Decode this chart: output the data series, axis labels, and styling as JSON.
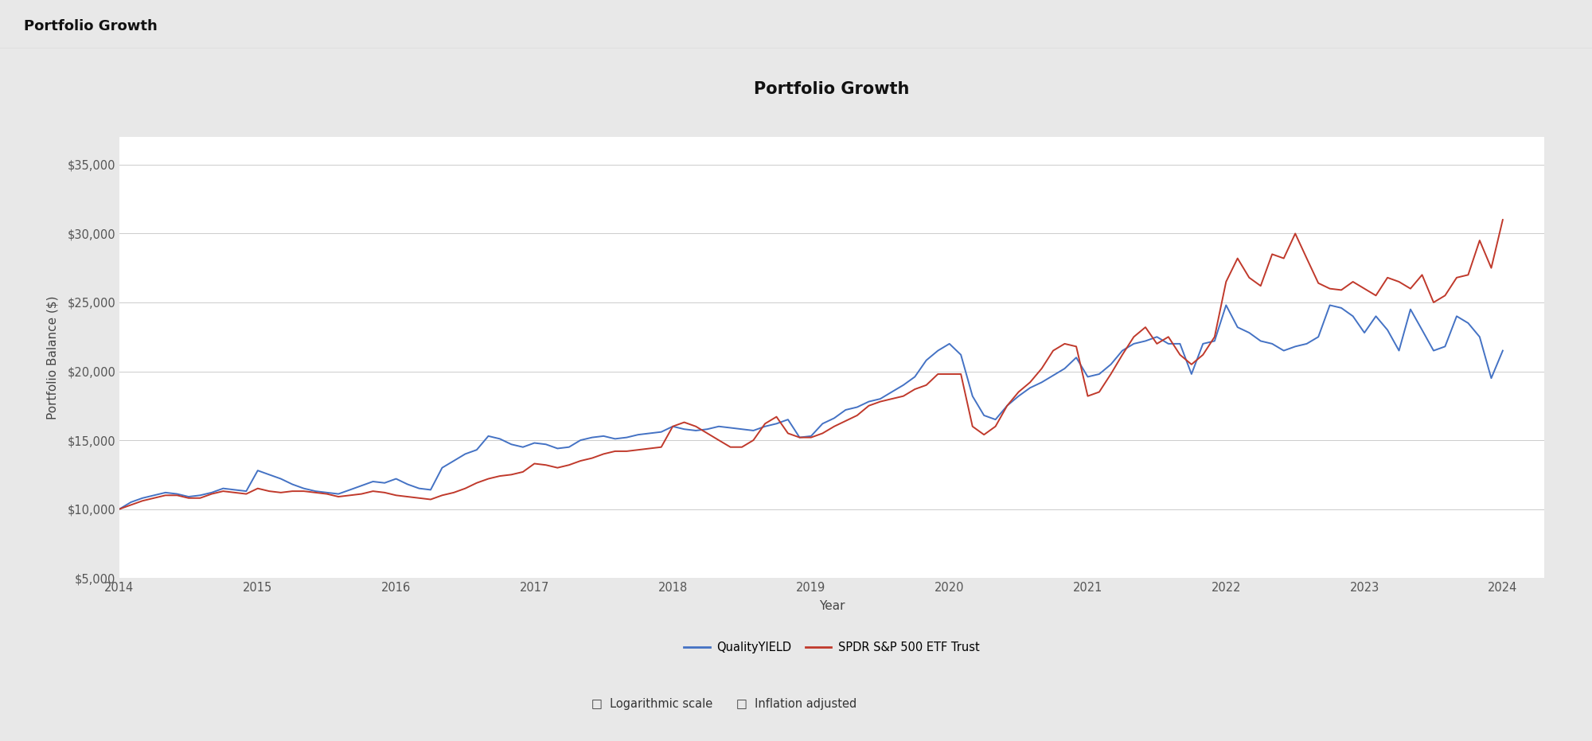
{
  "title": "Portfolio Growth",
  "header": "Portfolio Growth",
  "xlabel": "Year",
  "ylabel": "Portfolio Balance ($)",
  "background_color": "#e8e8e8",
  "chart_bg": "#ffffff",
  "blue_color": "#4472c4",
  "red_color": "#c0392b",
  "legend_blue": "QualityYIELD",
  "legend_red": "SPDR S&P 500 ETF Trust",
  "ylim": [
    5000,
    37000
  ],
  "yticks": [
    5000,
    10000,
    15000,
    20000,
    25000,
    30000,
    35000
  ],
  "blue_x": [
    2014.0,
    2014.083,
    2014.167,
    2014.25,
    2014.333,
    2014.417,
    2014.5,
    2014.583,
    2014.667,
    2014.75,
    2014.833,
    2014.917,
    2015.0,
    2015.083,
    2015.167,
    2015.25,
    2015.333,
    2015.417,
    2015.5,
    2015.583,
    2015.667,
    2015.75,
    2015.833,
    2015.917,
    2016.0,
    2016.083,
    2016.167,
    2016.25,
    2016.333,
    2016.417,
    2016.5,
    2016.583,
    2016.667,
    2016.75,
    2016.833,
    2016.917,
    2017.0,
    2017.083,
    2017.167,
    2017.25,
    2017.333,
    2017.417,
    2017.5,
    2017.583,
    2017.667,
    2017.75,
    2017.833,
    2017.917,
    2018.0,
    2018.083,
    2018.167,
    2018.25,
    2018.333,
    2018.417,
    2018.5,
    2018.583,
    2018.667,
    2018.75,
    2018.833,
    2018.917,
    2019.0,
    2019.083,
    2019.167,
    2019.25,
    2019.333,
    2019.417,
    2019.5,
    2019.583,
    2019.667,
    2019.75,
    2019.833,
    2019.917,
    2020.0,
    2020.083,
    2020.167,
    2020.25,
    2020.333,
    2020.417,
    2020.5,
    2020.583,
    2020.667,
    2020.75,
    2020.833,
    2020.917,
    2021.0,
    2021.083,
    2021.167,
    2021.25,
    2021.333,
    2021.417,
    2021.5,
    2021.583,
    2021.667,
    2021.75,
    2021.833,
    2021.917,
    2022.0,
    2022.083,
    2022.167,
    2022.25,
    2022.333,
    2022.417,
    2022.5,
    2022.583,
    2022.667,
    2022.75,
    2022.833,
    2022.917,
    2023.0,
    2023.083,
    2023.167,
    2023.25,
    2023.333,
    2023.417,
    2023.5,
    2023.583,
    2023.667,
    2023.75,
    2023.833,
    2023.917,
    2024.0
  ],
  "blue_y": [
    10000,
    10500,
    10800,
    11000,
    11200,
    11100,
    10900,
    11000,
    11200,
    11500,
    11400,
    11300,
    12800,
    12500,
    12200,
    11800,
    11500,
    11300,
    11200,
    11100,
    11400,
    11700,
    12000,
    11900,
    12200,
    11800,
    11500,
    11400,
    13000,
    13500,
    14000,
    14300,
    15300,
    15100,
    14700,
    14500,
    14800,
    14700,
    14400,
    14500,
    15000,
    15200,
    15300,
    15100,
    15200,
    15400,
    15500,
    15600,
    16000,
    15800,
    15700,
    15800,
    16000,
    15900,
    15800,
    15700,
    16000,
    16200,
    16500,
    15200,
    15300,
    16200,
    16600,
    17200,
    17400,
    17800,
    18000,
    18500,
    19000,
    19600,
    20800,
    21500,
    22000,
    21200,
    18200,
    16800,
    16500,
    17500,
    18200,
    18800,
    19200,
    19700,
    20200,
    21000,
    19600,
    19800,
    20500,
    21500,
    22000,
    22200,
    22500,
    22000,
    22000,
    19800,
    22000,
    22200,
    24800,
    23200,
    22800,
    22200,
    22000,
    21500,
    21800,
    22000,
    22500,
    24800,
    24600,
    24000,
    22800,
    24000,
    23000,
    21500,
    24500,
    23000,
    21500,
    21800,
    24000,
    23500,
    22500,
    19500,
    21500
  ],
  "red_x": [
    2014.0,
    2014.083,
    2014.167,
    2014.25,
    2014.333,
    2014.417,
    2014.5,
    2014.583,
    2014.667,
    2014.75,
    2014.833,
    2014.917,
    2015.0,
    2015.083,
    2015.167,
    2015.25,
    2015.333,
    2015.417,
    2015.5,
    2015.583,
    2015.667,
    2015.75,
    2015.833,
    2015.917,
    2016.0,
    2016.083,
    2016.167,
    2016.25,
    2016.333,
    2016.417,
    2016.5,
    2016.583,
    2016.667,
    2016.75,
    2016.833,
    2016.917,
    2017.0,
    2017.083,
    2017.167,
    2017.25,
    2017.333,
    2017.417,
    2017.5,
    2017.583,
    2017.667,
    2017.75,
    2017.833,
    2017.917,
    2018.0,
    2018.083,
    2018.167,
    2018.25,
    2018.333,
    2018.417,
    2018.5,
    2018.583,
    2018.667,
    2018.75,
    2018.833,
    2018.917,
    2019.0,
    2019.083,
    2019.167,
    2019.25,
    2019.333,
    2019.417,
    2019.5,
    2019.583,
    2019.667,
    2019.75,
    2019.833,
    2019.917,
    2020.0,
    2020.083,
    2020.167,
    2020.25,
    2020.333,
    2020.417,
    2020.5,
    2020.583,
    2020.667,
    2020.75,
    2020.833,
    2020.917,
    2021.0,
    2021.083,
    2021.167,
    2021.25,
    2021.333,
    2021.417,
    2021.5,
    2021.583,
    2021.667,
    2021.75,
    2021.833,
    2021.917,
    2022.0,
    2022.083,
    2022.167,
    2022.25,
    2022.333,
    2022.417,
    2022.5,
    2022.583,
    2022.667,
    2022.75,
    2022.833,
    2022.917,
    2023.0,
    2023.083,
    2023.167,
    2023.25,
    2023.333,
    2023.417,
    2023.5,
    2023.583,
    2023.667,
    2023.75,
    2023.833,
    2023.917,
    2024.0
  ],
  "red_y": [
    10000,
    10300,
    10600,
    10800,
    11000,
    11000,
    10800,
    10800,
    11100,
    11300,
    11200,
    11100,
    11500,
    11300,
    11200,
    11300,
    11300,
    11200,
    11100,
    10900,
    11000,
    11100,
    11300,
    11200,
    11000,
    10900,
    10800,
    10700,
    11000,
    11200,
    11500,
    11900,
    12200,
    12400,
    12500,
    12700,
    13300,
    13200,
    13000,
    13200,
    13500,
    13700,
    14000,
    14200,
    14200,
    14300,
    14400,
    14500,
    16000,
    16300,
    16000,
    15500,
    15000,
    14500,
    14500,
    15000,
    16200,
    16700,
    15500,
    15200,
    15200,
    15500,
    16000,
    16400,
    16800,
    17500,
    17800,
    18000,
    18200,
    18700,
    19000,
    19800,
    19800,
    19800,
    16000,
    15400,
    16000,
    17500,
    18500,
    19200,
    20200,
    21500,
    22000,
    21800,
    18200,
    18500,
    19800,
    21200,
    22500,
    23200,
    22000,
    22500,
    21200,
    20500,
    21200,
    22500,
    26500,
    28200,
    26800,
    26200,
    28500,
    28200,
    30000,
    28200,
    26400,
    26000,
    25900,
    26500,
    26000,
    25500,
    26800,
    26500,
    26000,
    27000,
    25000,
    25500,
    26800,
    27000,
    29500,
    27500,
    31000
  ]
}
